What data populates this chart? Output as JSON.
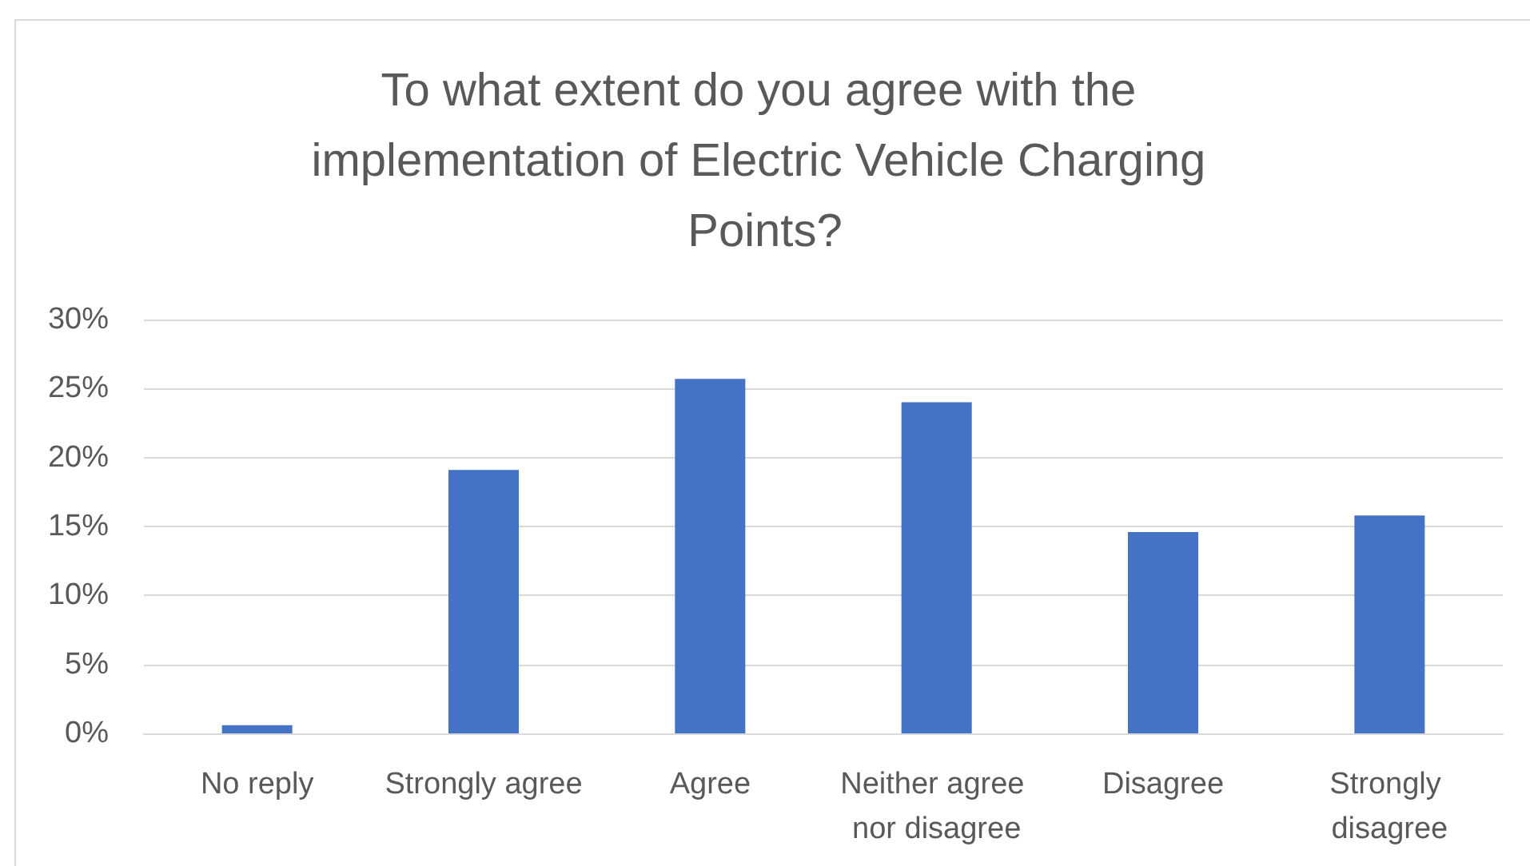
{
  "chart_data": {
    "type": "bar",
    "title": "To what extent do you agree with the implementation of Electric Vehicle Charging Points?",
    "categories": [
      "No reply",
      "Strongly agree",
      "Agree",
      "Neither agree nor disagree",
      "Disagree",
      "Strongly disagree"
    ],
    "values": [
      0.6,
      19.1,
      25.7,
      24.0,
      14.6,
      15.8
    ],
    "color": "#4472c4",
    "ylim": [
      0,
      30
    ],
    "yticks": [
      {
        "value": 0,
        "label": "0%"
      },
      {
        "value": 5,
        "label": "5%"
      },
      {
        "value": 10,
        "label": "10%"
      },
      {
        "value": 15,
        "label": "15%"
      },
      {
        "value": 20,
        "label": "20%"
      },
      {
        "value": 25,
        "label": "25%"
      },
      {
        "value": 30,
        "label": "30%"
      }
    ],
    "grid": "y"
  }
}
